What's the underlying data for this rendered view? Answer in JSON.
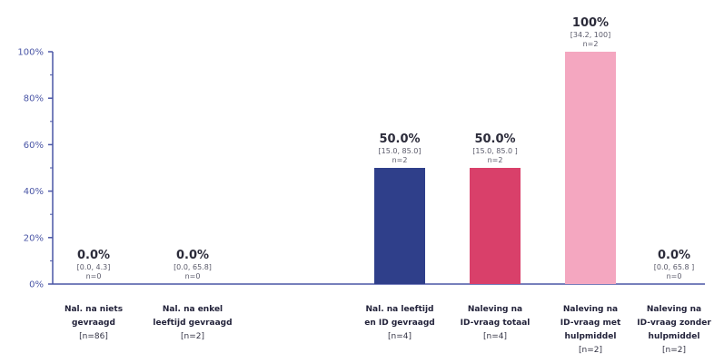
{
  "chart_data": {
    "type": "bar",
    "ylim": [
      0,
      100
    ],
    "yticks": [
      "0%",
      "20%",
      "40%",
      "60%",
      "80%",
      "100%"
    ],
    "ytick_values": [
      0,
      20,
      40,
      60,
      80,
      100
    ],
    "axis_color": "#4a56a6",
    "categories": [
      {
        "lines": [
          "Nal. na niets",
          "gevraagd"
        ],
        "n_label": "[n=86]",
        "value": 0.0,
        "value_label": "0.0%",
        "ci": "[0.0, 4.3]",
        "n": "n=0",
        "color": "#2f3f8a"
      },
      {
        "lines": [
          "Nal. na enkel",
          "leeftijd gevraagd"
        ],
        "n_label": "[n=2]",
        "value": 0.0,
        "value_label": "0.0%",
        "ci": "[0.0, 65.8]",
        "n": "n=0",
        "color": "#2f3f8a"
      },
      {
        "lines": [
          "Nal. na leeftijd",
          "en ID gevraagd"
        ],
        "n_label": "[n=4]",
        "value": 50.0,
        "value_label": "50.0%",
        "ci": "[15.0, 85.0]",
        "n": "n=2",
        "color": "#2f3f8a"
      },
      {
        "lines": [
          "Naleving na",
          "ID-vraag totaal"
        ],
        "n_label": "[n=4]",
        "value": 50.0,
        "value_label": "50.0%",
        "ci": "[15.0, 85.0 ]",
        "n": "n=2",
        "color": "#d9406a"
      },
      {
        "lines": [
          "Naleving na",
          "ID-vraag met",
          "hulpmiddel"
        ],
        "n_label": "[n=2]",
        "value": 100,
        "value_label": "100%",
        "ci": "[34.2, 100]",
        "n": "n=2",
        "color": "#f4a7c0"
      },
      {
        "lines": [
          "Naleving na",
          "ID-vraag zonder",
          "hulpmiddel"
        ],
        "n_label": "[n=2]",
        "value": 0.0,
        "value_label": "0.0%",
        "ci": "[0.0, 65.8 ]",
        "n": "n=0",
        "color": "#f4a7c0"
      }
    ]
  }
}
